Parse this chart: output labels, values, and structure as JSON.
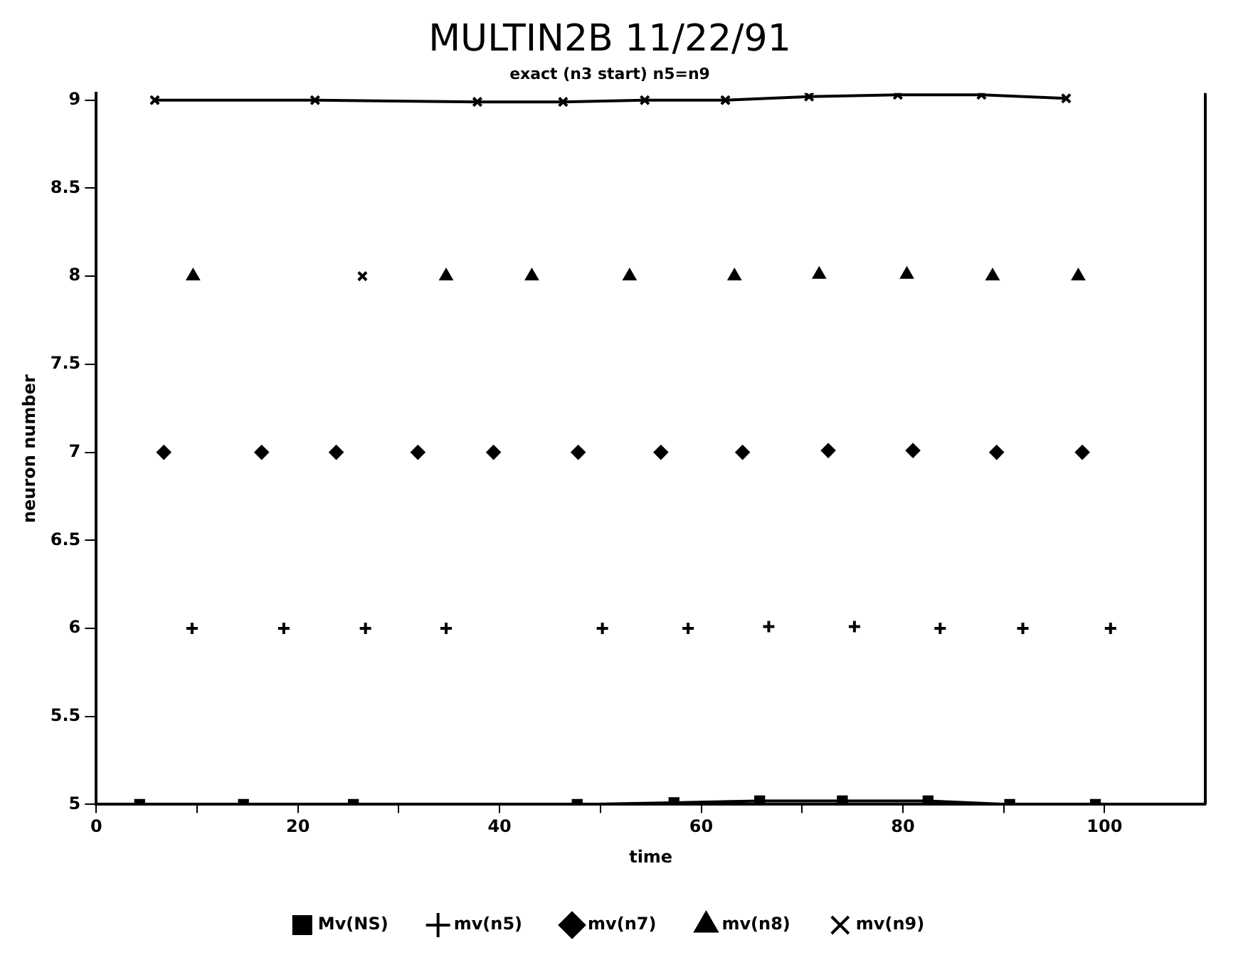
{
  "chart_data": {
    "type": "scatter",
    "title": "MULTIN2B 11/22/91",
    "subtitle": "exact (n3 start) n5=n9",
    "xlabel": "time",
    "ylabel": "neuron number",
    "xlim": [
      0,
      110
    ],
    "xticks": [
      0,
      {
        "value": 10,
        "label": null
      },
      20,
      {
        "value": 30,
        "label": null
      },
      40,
      {
        "value": 50,
        "label": null
      },
      60,
      {
        "value": 70,
        "label": null
      },
      80,
      {
        "value": 90,
        "label": null
      },
      100
    ],
    "ylim": [
      5,
      9.04
    ],
    "yticks": [
      5,
      5.5,
      6,
      6.5,
      7,
      7.5,
      8,
      8.5,
      9
    ],
    "grid": false,
    "legend": "bottom",
    "series": [
      {
        "name": "Mv(NS)",
        "type": "line",
        "marker": "square",
        "color": "#000000",
        "x": [
          4.3,
          14.6,
          25.5,
          47.7,
          57.3,
          65.8,
          74,
          82.5,
          90.6,
          99.1
        ],
        "values": [
          5,
          5,
          5,
          5,
          5.01,
          5.02,
          5.02,
          5.02,
          5,
          5
        ]
      },
      {
        "name": "mv(n5)",
        "type": "scatter",
        "marker": "plus",
        "color": "#000000",
        "x": [
          9.5,
          18.6,
          26.7,
          34.7,
          50.2,
          58.7,
          66.7,
          75.2,
          83.7,
          91.9,
          100.6
        ],
        "values": [
          6,
          6,
          6,
          6,
          6,
          6,
          6.01,
          6.01,
          6,
          6,
          6
        ]
      },
      {
        "name": "mv(n7)",
        "type": "scatter",
        "marker": "diamond",
        "color": "#000000",
        "x": [
          6.7,
          16.4,
          23.8,
          31.9,
          39.4,
          47.8,
          56,
          64.1,
          72.6,
          81,
          89.3,
          97.8
        ],
        "values": [
          7,
          7,
          7,
          7,
          7,
          7,
          7,
          7,
          7.01,
          7.01,
          7,
          7
        ]
      },
      {
        "name": "mv(n8)",
        "type": "scatter",
        "marker": "triangle",
        "color": "#000000",
        "x": [
          9.6,
          34.7,
          43.2,
          52.9,
          63.3,
          71.7,
          80.4,
          88.9,
          97.4
        ],
        "values": [
          8,
          8,
          8,
          8,
          8,
          8.01,
          8.01,
          8,
          8
        ]
      },
      {
        "name": "mv(n9)",
        "type": "scatter",
        "marker": "cross",
        "color": "#000000",
        "x": [
          26.4
        ],
        "values": [
          8
        ]
      },
      {
        "type": "line",
        "marker": "cross",
        "color": "#000000",
        "x": [
          5.8,
          21.7,
          37.8,
          46.3,
          54.4,
          62.4,
          70.7,
          79.5,
          87.8,
          96.2
        ],
        "values": [
          9,
          9,
          8.99,
          8.99,
          9,
          9,
          9.02,
          9.03,
          9.03,
          9.01
        ]
      }
    ]
  }
}
